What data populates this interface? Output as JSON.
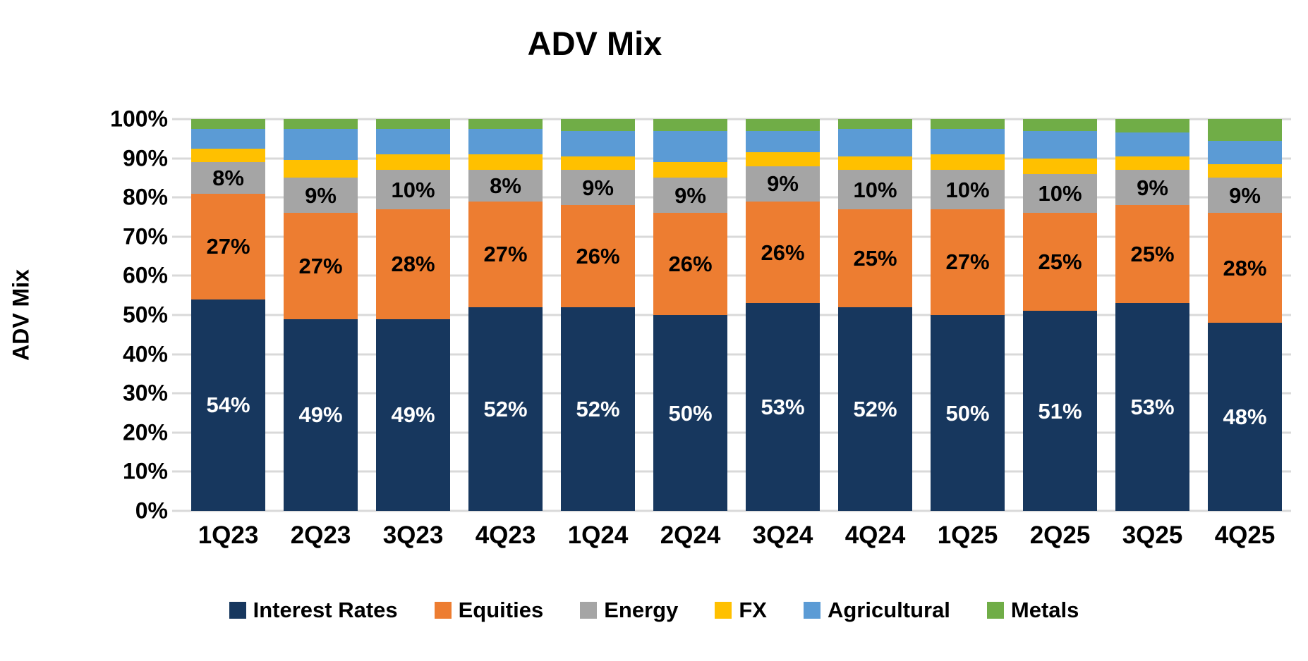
{
  "page": {
    "background": "#FFFFFF"
  },
  "chart_data": {
    "type": "bar",
    "variant": "100pct-stacked-column",
    "title": "ADV Mix",
    "xlabel": "",
    "ylabel": "ADV Mix",
    "ylim": [
      0,
      100
    ],
    "y_tick_labels": [
      "0%",
      "10%",
      "20%",
      "30%",
      "40%",
      "50%",
      "60%",
      "70%",
      "80%",
      "90%",
      "100%"
    ],
    "grid": true,
    "gridline_color": "#D9D9D9",
    "legend_position": "bottom",
    "categories": [
      "1Q23",
      "2Q23",
      "3Q23",
      "4Q23",
      "1Q24",
      "2Q24",
      "3Q24",
      "4Q24",
      "1Q25",
      "2Q25",
      "3Q25",
      "4Q25"
    ],
    "series": [
      {
        "name": "Interest Rates",
        "color": "#17375E",
        "data_labels_shown": true,
        "label_text_color": "#FFFFFF",
        "values": [
          54,
          49,
          49,
          52,
          52,
          50,
          53,
          52,
          50,
          51,
          53,
          48
        ]
      },
      {
        "name": "Equities",
        "color": "#ED7D31",
        "data_labels_shown": true,
        "label_text_color": "#000000",
        "values": [
          27,
          27,
          28,
          27,
          26,
          26,
          26,
          25,
          27,
          25,
          25,
          28
        ]
      },
      {
        "name": "Energy",
        "color": "#A5A5A5",
        "data_labels_shown": true,
        "label_text_color": "#000000",
        "values": [
          8,
          9,
          10,
          8,
          9,
          9,
          9,
          10,
          10,
          10,
          9,
          9
        ]
      },
      {
        "name": "FX",
        "color": "#FFC000",
        "data_labels_shown": false,
        "estimated_from_pixels": true,
        "values": [
          3.5,
          4.5,
          4,
          4,
          3.5,
          4,
          3.5,
          3.5,
          4,
          4,
          3.5,
          3.5
        ]
      },
      {
        "name": "Agricultural",
        "color": "#5B9BD5",
        "data_labels_shown": false,
        "estimated_from_pixels": true,
        "values": [
          5,
          8,
          6.5,
          6.5,
          6.5,
          8,
          5.5,
          7,
          6.5,
          7,
          6,
          6
        ]
      },
      {
        "name": "Metals",
        "color": "#70AD47",
        "data_labels_shown": false,
        "estimated_from_pixels": true,
        "values": [
          2.5,
          2.5,
          2.5,
          2.5,
          3,
          3,
          3,
          2.5,
          2.5,
          3,
          3.5,
          5.5
        ]
      }
    ]
  }
}
